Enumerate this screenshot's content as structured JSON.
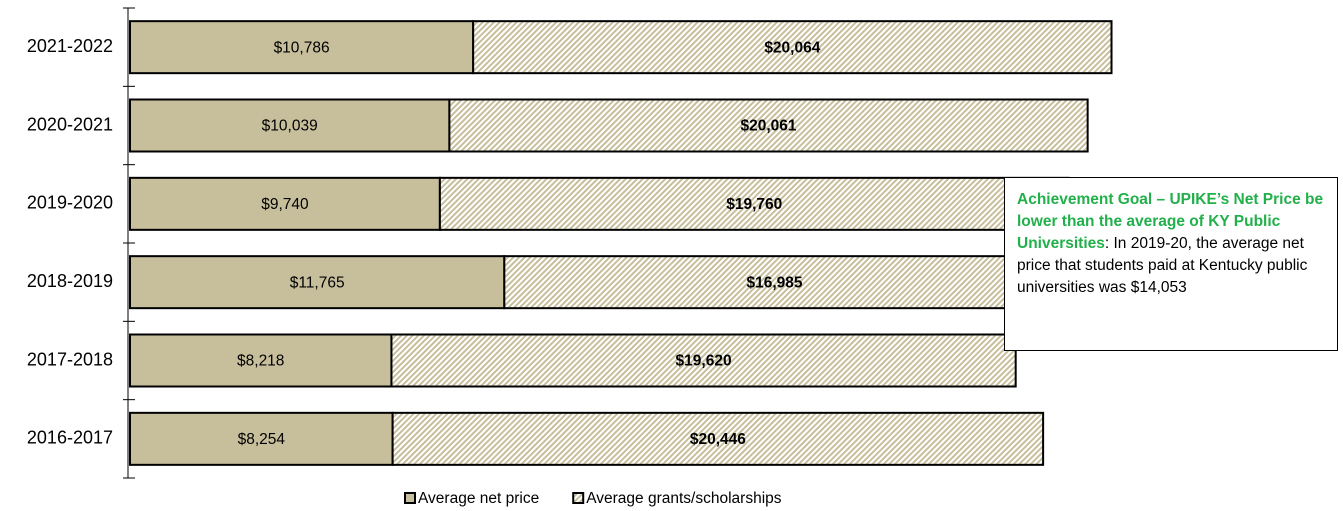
{
  "chart_data": {
    "type": "stacked-bar-horizontal",
    "categories": [
      "2021-2022",
      "2020-2021",
      "2019-2020",
      "2018-2019",
      "2017-2018",
      "2016-2017"
    ],
    "series": [
      {
        "name": "Average net price",
        "color": "#c7be9c",
        "pattern": "solid",
        "values": [
          10786,
          10039,
          9740,
          11765,
          8218,
          8254
        ],
        "value_labels": [
          "$10,786",
          "$10,039",
          "$9,740",
          "$11,765",
          "$8,218",
          "$8,254"
        ]
      },
      {
        "name": "Average grants/scholarships",
        "color": "#c7be9c",
        "pattern": "hatch",
        "values": [
          20064,
          20061,
          19760,
          16985,
          19620,
          20446
        ],
        "value_labels": [
          "$20,064",
          "$20,061",
          "$19,760",
          "$16,985",
          "$19,620",
          "$20,446"
        ]
      }
    ],
    "xlim": [
      0,
      38000
    ],
    "legend": "bottom",
    "annotation": {
      "title": "Achievement Goal – UPIKE’s Net Price be lower than the average of KY Public Universities",
      "text": ": In 2019-20, the average net price that students paid at Kentucky public universities was $14,053"
    }
  }
}
